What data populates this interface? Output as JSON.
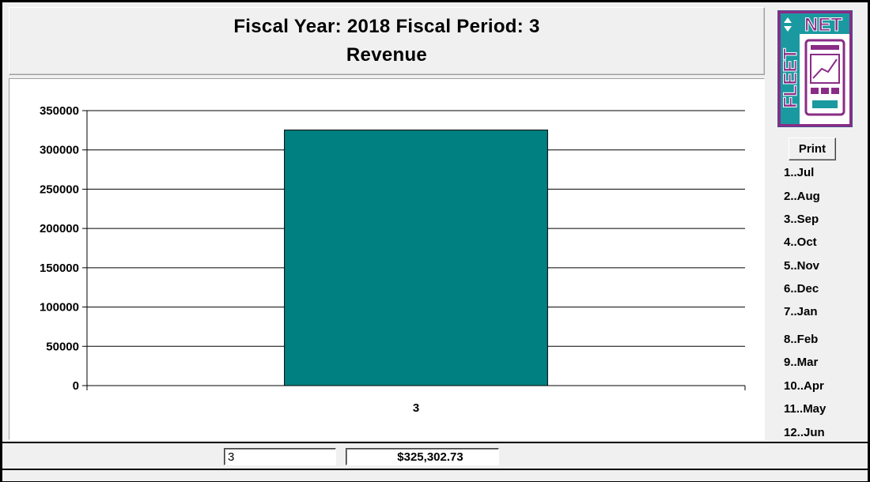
{
  "title": {
    "line1": "Fiscal Year:  2018  Fiscal Period:  3",
    "line2": "Revenue"
  },
  "logo": {
    "text_vertical": "FLEET",
    "text_horizontal": "NET",
    "colors": {
      "purple": "#8a2c86",
      "teal": "#1a9aa0",
      "white": "#ffffff"
    }
  },
  "sidebar": {
    "print_label": "Print",
    "months": [
      "1..Jul",
      "2..Aug",
      "3..Sep",
      "4..Oct",
      "5..Nov",
      "6..Dec",
      "7..Jan",
      "8..Feb",
      "9..Mar",
      "10..Apr",
      "11..May",
      "12..Jun"
    ]
  },
  "footer": {
    "period_value": "3",
    "amount_value": "$325,302.73"
  },
  "chart_data": {
    "type": "bar",
    "categories": [
      "3"
    ],
    "values": [
      325302.73
    ],
    "ylim": [
      0,
      350000
    ],
    "yticks": [
      0,
      50000,
      100000,
      150000,
      200000,
      250000,
      300000,
      350000
    ],
    "grid": true,
    "bar_color": "#008080"
  }
}
